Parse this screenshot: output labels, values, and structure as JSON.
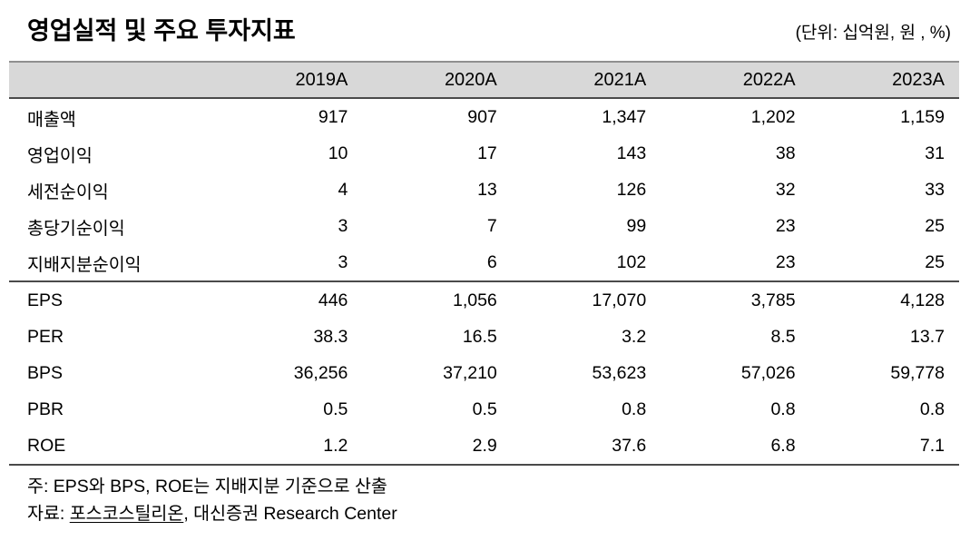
{
  "title": "영업실적 및 주요 투자지표",
  "unit_note": "(단위: 십억원, 원 , %)",
  "table": {
    "corner_label": "",
    "columns": [
      "2019A",
      "2020A",
      "2021A",
      "2022A",
      "2023A"
    ],
    "sections": [
      {
        "name": "operating-results",
        "rows": [
          {
            "label": "매출액",
            "values": [
              "917",
              "907",
              "1,347",
              "1,202",
              "1,159"
            ]
          },
          {
            "label": "영업이익",
            "values": [
              "10",
              "17",
              "143",
              "38",
              "31"
            ]
          },
          {
            "label": "세전순이익",
            "values": [
              "4",
              "13",
              "126",
              "32",
              "33"
            ]
          },
          {
            "label": "총당기순이익",
            "values": [
              "3",
              "7",
              "99",
              "23",
              "25"
            ]
          },
          {
            "label": "지배지분순이익",
            "values": [
              "3",
              "6",
              "102",
              "23",
              "25"
            ]
          }
        ]
      },
      {
        "name": "investment-indicators",
        "rows": [
          {
            "label": "EPS",
            "values": [
              "446",
              "1,056",
              "17,070",
              "3,785",
              "4,128"
            ]
          },
          {
            "label": "PER",
            "values": [
              "38.3",
              "16.5",
              "3.2",
              "8.5",
              "13.7"
            ]
          },
          {
            "label": "BPS",
            "values": [
              "36,256",
              "37,210",
              "53,623",
              "57,026",
              "59,778"
            ]
          },
          {
            "label": "PBR",
            "values": [
              "0.5",
              "0.5",
              "0.8",
              "0.8",
              "0.8"
            ]
          },
          {
            "label": "ROE",
            "values": [
              "1.2",
              "2.9",
              "37.6",
              "6.8",
              "7.1"
            ]
          }
        ]
      }
    ]
  },
  "footnotes": {
    "note": "주: EPS와 BPS, ROE는 지배지분 기준으로 산출",
    "source_prefix": "자료: ",
    "source_company": "포스코스틸리온",
    "source_suffix": ", 대신증권 Research Center"
  },
  "colors": {
    "header_fill": "#d8d8d8",
    "header_top_border": "#8f8f8f",
    "dark_rule": "#4a4a4a",
    "text": "#000000"
  }
}
